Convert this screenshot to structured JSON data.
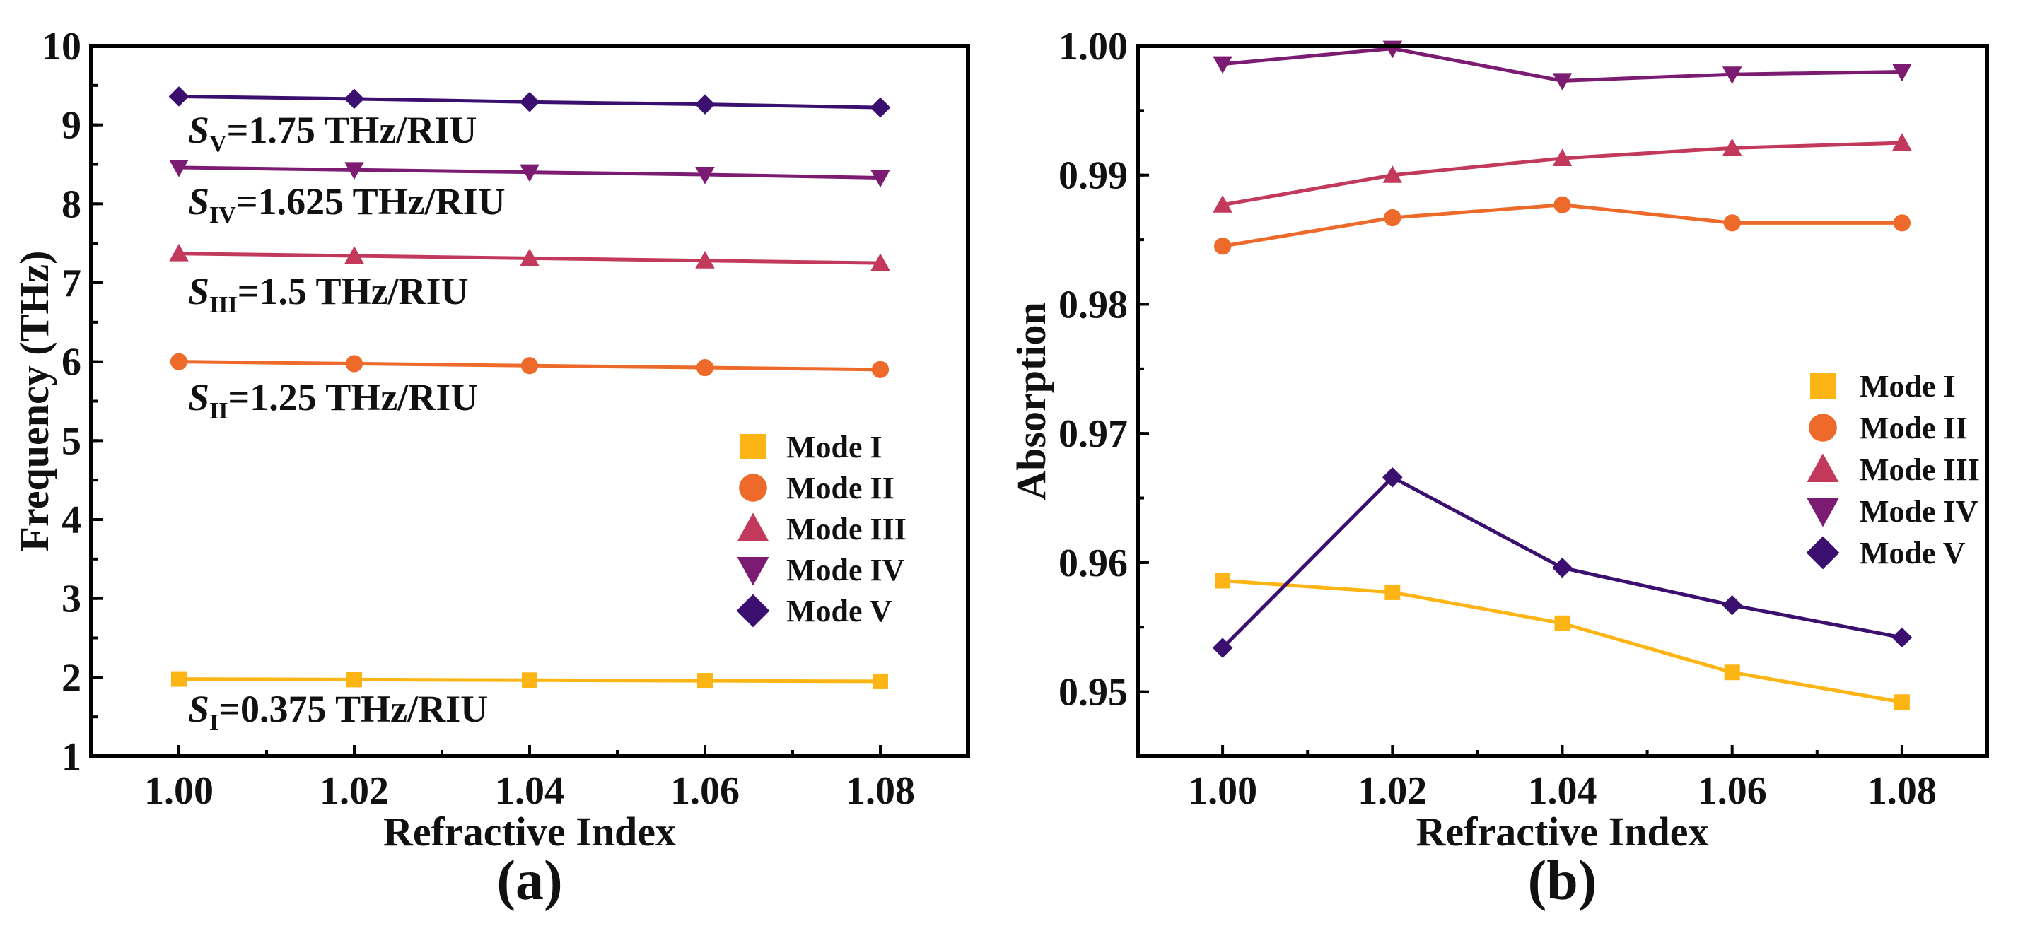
{
  "chart_data": [
    {
      "type": "line",
      "panel_label": "(a)",
      "xlabel": "Refractive Index",
      "ylabel": "Frequency (THz)",
      "xlim": [
        0.99,
        1.09
      ],
      "ylim": [
        1,
        10
      ],
      "x_ticks": [
        "1.00",
        "1.02",
        "1.04",
        "1.06",
        "1.08"
      ],
      "y_ticks": [
        "1",
        "2",
        "3",
        "4",
        "5",
        "6",
        "7",
        "8",
        "9",
        "10"
      ],
      "x": [
        1.0,
        1.02,
        1.04,
        1.06,
        1.08
      ],
      "legend_placement": "center-right",
      "series": [
        {
          "name": "Mode I",
          "marker": "square",
          "color": "#FDB515",
          "values": [
            1.98,
            1.9725,
            1.965,
            1.9575,
            1.95
          ]
        },
        {
          "name": "Mode II",
          "marker": "circle",
          "color": "#EE6A2A",
          "values": [
            6.0,
            5.975,
            5.95,
            5.925,
            5.9
          ]
        },
        {
          "name": "Mode III",
          "marker": "triangle-up",
          "color": "#C2395B",
          "values": [
            7.37,
            7.34,
            7.31,
            7.28,
            7.25
          ]
        },
        {
          "name": "Mode IV",
          "marker": "triangle-down",
          "color": "#7B1C72",
          "values": [
            8.46,
            8.43,
            8.4,
            8.37,
            8.33
          ]
        },
        {
          "name": "Mode V",
          "marker": "diamond",
          "color": "#3B0F6F",
          "values": [
            9.36,
            9.33,
            9.29,
            9.26,
            9.22
          ]
        }
      ],
      "annotations": [
        {
          "sym": "S",
          "sub": "V",
          "text": "=1.75 THz/RIU"
        },
        {
          "sym": "S",
          "sub": "IV",
          "text": "=1.625 THz/RIU"
        },
        {
          "sym": "S",
          "sub": "III",
          "text": "=1.5 THz/RIU"
        },
        {
          "sym": "S",
          "sub": "II",
          "text": "=1.25 THz/RIU"
        },
        {
          "sym": "S",
          "sub": "I",
          "text": "=0.375 THz/RIU"
        }
      ]
    },
    {
      "type": "line",
      "panel_label": "(b)",
      "xlabel": "Refractive Index",
      "ylabel": "Absorption",
      "xlim": [
        0.99,
        1.09
      ],
      "ylim": [
        0.945,
        1.0
      ],
      "x_ticks": [
        "1.00",
        "1.02",
        "1.04",
        "1.06",
        "1.08"
      ],
      "y_ticks": [
        "0.95",
        "0.96",
        "0.97",
        "0.98",
        "0.99",
        "1.00"
      ],
      "x": [
        1.0,
        1.02,
        1.04,
        1.06,
        1.08
      ],
      "legend_placement": "center-right",
      "series": [
        {
          "name": "Mode I",
          "marker": "square",
          "color": "#FDB515",
          "values": [
            0.9586,
            0.9577,
            0.9553,
            0.9515,
            0.9492
          ]
        },
        {
          "name": "Mode II",
          "marker": "circle",
          "color": "#EE6A2A",
          "values": [
            0.9845,
            0.9867,
            0.9877,
            0.9863,
            0.9863
          ]
        },
        {
          "name": "Mode III",
          "marker": "triangle-up",
          "color": "#C2395B",
          "values": [
            0.9877,
            0.99,
            0.9913,
            0.9921,
            0.9925
          ]
        },
        {
          "name": "Mode IV",
          "marker": "triangle-down",
          "color": "#7B1C72",
          "values": [
            0.9986,
            0.9998,
            0.9973,
            0.9978,
            0.998
          ]
        },
        {
          "name": "Mode V",
          "marker": "diamond",
          "color": "#3B0F6F",
          "values": [
            0.9534,
            0.9666,
            0.9596,
            0.9567,
            0.9542
          ]
        }
      ]
    }
  ]
}
